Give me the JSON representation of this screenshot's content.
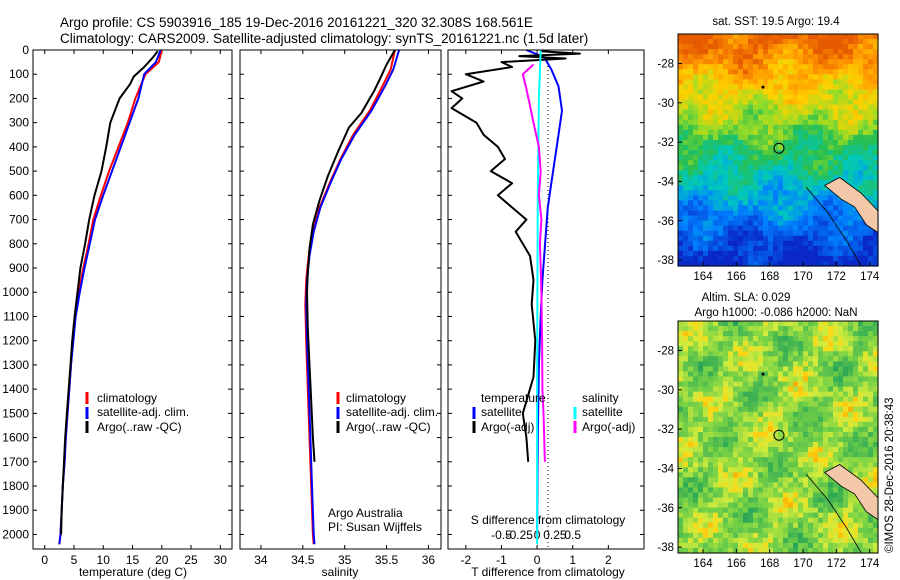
{
  "header": {
    "line1": "Argo profile: CS 5903916_185 19-Dec-2016 20161221_320 32.308S 168.561E",
    "line2": "Climatology: CARS2009. Satellite-adjusted climatology: synTS_20161221.nc (1.5d later)"
  },
  "colors": {
    "climatology": "#ff0000",
    "satellite": "#0000ff",
    "argo": "#000000",
    "sat_salinity": "#00ffff",
    "argo_salinity": "#ff00ff"
  },
  "chart_data": [
    {
      "type": "line",
      "name": "temperature-panel",
      "xlabel": "temperature (deg C)",
      "ylabel": "",
      "xlim": [
        -2,
        32
      ],
      "ylim": [
        2060,
        0
      ],
      "x_ticks": [
        0,
        5,
        10,
        15,
        20,
        25,
        30
      ],
      "y_ticks": [
        0,
        100,
        200,
        300,
        400,
        500,
        600,
        700,
        800,
        900,
        1000,
        1100,
        1200,
        1300,
        1400,
        1500,
        1600,
        1700,
        1800,
        1900,
        2000
      ],
      "legend": [
        "climatology",
        "satellite-adj. clim.",
        "Argo(..raw -QC)"
      ],
      "legend_position": "lower-middle",
      "series": [
        {
          "name": "climatology",
          "points": [
            [
              20,
              0
            ],
            [
              19.5,
              50
            ],
            [
              17.2,
              100
            ],
            [
              15.5,
              200
            ],
            [
              14.2,
              300
            ],
            [
              12.6,
              400
            ],
            [
              11,
              500
            ],
            [
              9.6,
              600
            ],
            [
              8.3,
              700
            ],
            [
              7.5,
              800
            ],
            [
              6.6,
              900
            ],
            [
              5.8,
              1000
            ],
            [
              5.2,
              1100
            ],
            [
              4.8,
              1200
            ],
            [
              4.5,
              1300
            ],
            [
              4.2,
              1400
            ],
            [
              3.9,
              1500
            ],
            [
              3.6,
              1600
            ],
            [
              3.4,
              1700
            ],
            [
              3.1,
              1800
            ],
            [
              2.9,
              1900
            ],
            [
              2.7,
              2000
            ],
            [
              2.5,
              2040
            ]
          ]
        },
        {
          "name": "satellite-adj. clim.",
          "points": [
            [
              19.8,
              0
            ],
            [
              19,
              50
            ],
            [
              17,
              100
            ],
            [
              16,
              200
            ],
            [
              14.5,
              300
            ],
            [
              13,
              400
            ],
            [
              11.5,
              500
            ],
            [
              10,
              600
            ],
            [
              8.6,
              700
            ],
            [
              7.7,
              800
            ],
            [
              6.8,
              900
            ],
            [
              6,
              1000
            ],
            [
              5.3,
              1100
            ],
            [
              4.9,
              1200
            ],
            [
              4.5,
              1300
            ],
            [
              4.2,
              1400
            ],
            [
              3.9,
              1500
            ],
            [
              3.6,
              1600
            ],
            [
              3.4,
              1700
            ],
            [
              3.1,
              1800
            ],
            [
              2.9,
              1900
            ],
            [
              2.7,
              2000
            ],
            [
              2.5,
              2040
            ]
          ]
        },
        {
          "name": "Argo(..raw -QC)",
          "points": [
            [
              19.3,
              5
            ],
            [
              18.5,
              30
            ],
            [
              17,
              70
            ],
            [
              15.2,
              110
            ],
            [
              14.6,
              140
            ],
            [
              12.8,
              200
            ],
            [
              12,
              250
            ],
            [
              11.2,
              300
            ],
            [
              10.5,
              400
            ],
            [
              9.7,
              500
            ],
            [
              8.5,
              600
            ],
            [
              7.6,
              700
            ],
            [
              6.9,
              800
            ],
            [
              6.1,
              900
            ],
            [
              5.6,
              1000
            ],
            [
              5.1,
              1100
            ],
            [
              4.7,
              1200
            ],
            [
              4.4,
              1300
            ],
            [
              4.1,
              1400
            ],
            [
              3.8,
              1500
            ],
            [
              3.5,
              1600
            ],
            [
              3.3,
              1700
            ],
            [
              3.1,
              1800
            ],
            [
              2.9,
              1900
            ],
            [
              2.8,
              2000
            ]
          ]
        }
      ]
    },
    {
      "type": "line",
      "name": "salinity-panel",
      "xlabel": "salinity",
      "ylabel": "",
      "xlim": [
        33.75,
        36.15
      ],
      "ylim": [
        2060,
        0
      ],
      "x_ticks": [
        34,
        34.5,
        35,
        35.5,
        36
      ],
      "legend": [
        "climatology",
        "satellite-adj. clim.",
        "Argo(..raw -QC)"
      ],
      "legend_position": "lower-middle",
      "annotations": [
        "Argo Australia",
        "PI: Susan Wijffels"
      ],
      "series": [
        {
          "name": "climatology",
          "points": [
            [
              35.6,
              0
            ],
            [
              35.55,
              80
            ],
            [
              35.45,
              150
            ],
            [
              35.3,
              250
            ],
            [
              35.1,
              350
            ],
            [
              34.95,
              450
            ],
            [
              34.82,
              550
            ],
            [
              34.7,
              650
            ],
            [
              34.62,
              750
            ],
            [
              34.57,
              850
            ],
            [
              34.54,
              950
            ],
            [
              34.53,
              1050
            ],
            [
              34.54,
              1200
            ],
            [
              34.56,
              1400
            ],
            [
              34.58,
              1600
            ],
            [
              34.6,
              1800
            ],
            [
              34.62,
              2000
            ],
            [
              34.63,
              2040
            ]
          ]
        },
        {
          "name": "satellite-adj. clim.",
          "points": [
            [
              35.65,
              0
            ],
            [
              35.58,
              80
            ],
            [
              35.48,
              150
            ],
            [
              35.32,
              250
            ],
            [
              35.12,
              350
            ],
            [
              34.96,
              450
            ],
            [
              34.83,
              550
            ],
            [
              34.71,
              650
            ],
            [
              34.63,
              750
            ],
            [
              34.58,
              850
            ],
            [
              34.55,
              950
            ],
            [
              34.54,
              1050
            ],
            [
              34.55,
              1200
            ],
            [
              34.57,
              1400
            ],
            [
              34.59,
              1600
            ],
            [
              34.61,
              1800
            ],
            [
              34.63,
              2000
            ],
            [
              34.64,
              2040
            ]
          ]
        },
        {
          "name": "Argo(..raw -QC)",
          "points": [
            [
              35.6,
              0
            ],
            [
              35.5,
              60
            ],
            [
              35.42,
              120
            ],
            [
              35.35,
              170
            ],
            [
              35.3,
              200
            ],
            [
              35.2,
              260
            ],
            [
              35.05,
              320
            ],
            [
              34.92,
              420
            ],
            [
              34.8,
              520
            ],
            [
              34.7,
              620
            ],
            [
              34.62,
              720
            ],
            [
              34.58,
              820
            ],
            [
              34.56,
              920
            ],
            [
              34.55,
              1000
            ],
            [
              34.56,
              1150
            ],
            [
              34.58,
              1300
            ],
            [
              34.6,
              1450
            ],
            [
              34.62,
              1600
            ],
            [
              34.64,
              1700
            ]
          ]
        }
      ]
    },
    {
      "type": "line",
      "name": "difference-panel",
      "xlabel": "T difference from climatology",
      "x2label": "S difference from climatology",
      "xlim": [
        -2.5,
        3
      ],
      "ylim": [
        2060,
        0
      ],
      "x_ticks": [
        -2,
        -1,
        0,
        1,
        2
      ],
      "x2_tick_labels": [
        "-0.5",
        "-0.25",
        "0",
        "0.25",
        "0.5"
      ],
      "legend_left": [
        "temperature",
        "satellite",
        "Argo(-adj)"
      ],
      "legend_right": [
        "salinity",
        "satellite",
        "Argo(-adj)"
      ],
      "series": [
        {
          "name": "temperature satellite",
          "points": [
            [
              -0.3,
              0
            ],
            [
              0.2,
              30
            ],
            [
              0.4,
              80
            ],
            [
              0.6,
              150
            ],
            [
              0.7,
              250
            ],
            [
              0.6,
              350
            ],
            [
              0.5,
              450
            ],
            [
              0.4,
              550
            ],
            [
              0.3,
              650
            ],
            [
              0.25,
              750
            ],
            [
              0.2,
              850
            ],
            [
              0.15,
              950
            ],
            [
              0.1,
              1100
            ],
            [
              0.05,
              1300
            ],
            [
              0.02,
              1600
            ],
            [
              0,
              2000
            ]
          ]
        },
        {
          "name": "temperature Argo(-adj)",
          "points": [
            [
              0.1,
              5
            ],
            [
              1.2,
              15
            ],
            [
              -0.5,
              25
            ],
            [
              0.8,
              35
            ],
            [
              -1,
              50
            ],
            [
              -0.7,
              70
            ],
            [
              -2,
              100
            ],
            [
              -1.5,
              130
            ],
            [
              -2.4,
              170
            ],
            [
              -2.1,
              200
            ],
            [
              -2.4,
              240
            ],
            [
              -1.7,
              300
            ],
            [
              -1.5,
              350
            ],
            [
              -1.1,
              400
            ],
            [
              -0.9,
              450
            ],
            [
              -1.3,
              500
            ],
            [
              -0.7,
              550
            ],
            [
              -1.1,
              600
            ],
            [
              -0.3,
              700
            ],
            [
              -0.6,
              750
            ],
            [
              -0.2,
              850
            ],
            [
              -0.1,
              950
            ],
            [
              -0.15,
              1050
            ],
            [
              -0.05,
              1200
            ],
            [
              -0.1,
              1350
            ],
            [
              -0.3,
              1450
            ],
            [
              -0.4,
              1500
            ],
            [
              -0.3,
              1600
            ],
            [
              -0.25,
              1700
            ]
          ]
        },
        {
          "name": "salinity satellite",
          "points": [
            [
              0.1,
              0
            ],
            [
              0.05,
              200
            ],
            [
              0.02,
              600
            ],
            [
              0.01,
              1000
            ],
            [
              0,
              1500
            ],
            [
              0,
              2040
            ]
          ]
        },
        {
          "name": "salinity Argo(-adj)",
          "points": [
            [
              -0.1,
              60
            ],
            [
              -0.4,
              100
            ],
            [
              -0.3,
              160
            ],
            [
              -0.2,
              230
            ],
            [
              -0.1,
              300
            ],
            [
              0.05,
              400
            ],
            [
              0.1,
              500
            ],
            [
              0.05,
              600
            ],
            [
              0.12,
              700
            ],
            [
              0.08,
              800
            ],
            [
              0.1,
              900
            ],
            [
              0.12,
              1000
            ],
            [
              0.14,
              1200
            ],
            [
              0.15,
              1400
            ],
            [
              0.18,
              1500
            ],
            [
              0.2,
              1600
            ],
            [
              0.22,
              1700
            ]
          ]
        }
      ]
    },
    {
      "type": "heatmap",
      "name": "sst-map",
      "title": "sat. SST: 19.5 Argo: 19.4",
      "xlim": [
        162.5,
        174.5
      ],
      "ylim": [
        -38.3,
        -26.5
      ],
      "x_ticks": [
        164,
        166,
        168,
        170,
        172,
        174
      ],
      "y_ticks": [
        -28,
        -30,
        -32,
        -34,
        -36,
        -38
      ],
      "marker": {
        "lon": 168.56,
        "lat": -32.31
      }
    },
    {
      "type": "heatmap",
      "name": "sla-map",
      "title_line1": "Altim. SLA: 0.029",
      "title_line2": "Argo h1000: -0.086 h2000: NaN",
      "xlim": [
        162.5,
        174.5
      ],
      "ylim": [
        -38.3,
        -26.5
      ],
      "x_ticks": [
        164,
        166,
        168,
        170,
        172,
        174
      ],
      "y_ticks": [
        -28,
        -30,
        -32,
        -34,
        -36,
        -38
      ],
      "marker": {
        "lon": 168.56,
        "lat": -32.31
      }
    }
  ],
  "footer": {
    "credit": "©IMOS 28-Dec-2016 20:38:43"
  }
}
